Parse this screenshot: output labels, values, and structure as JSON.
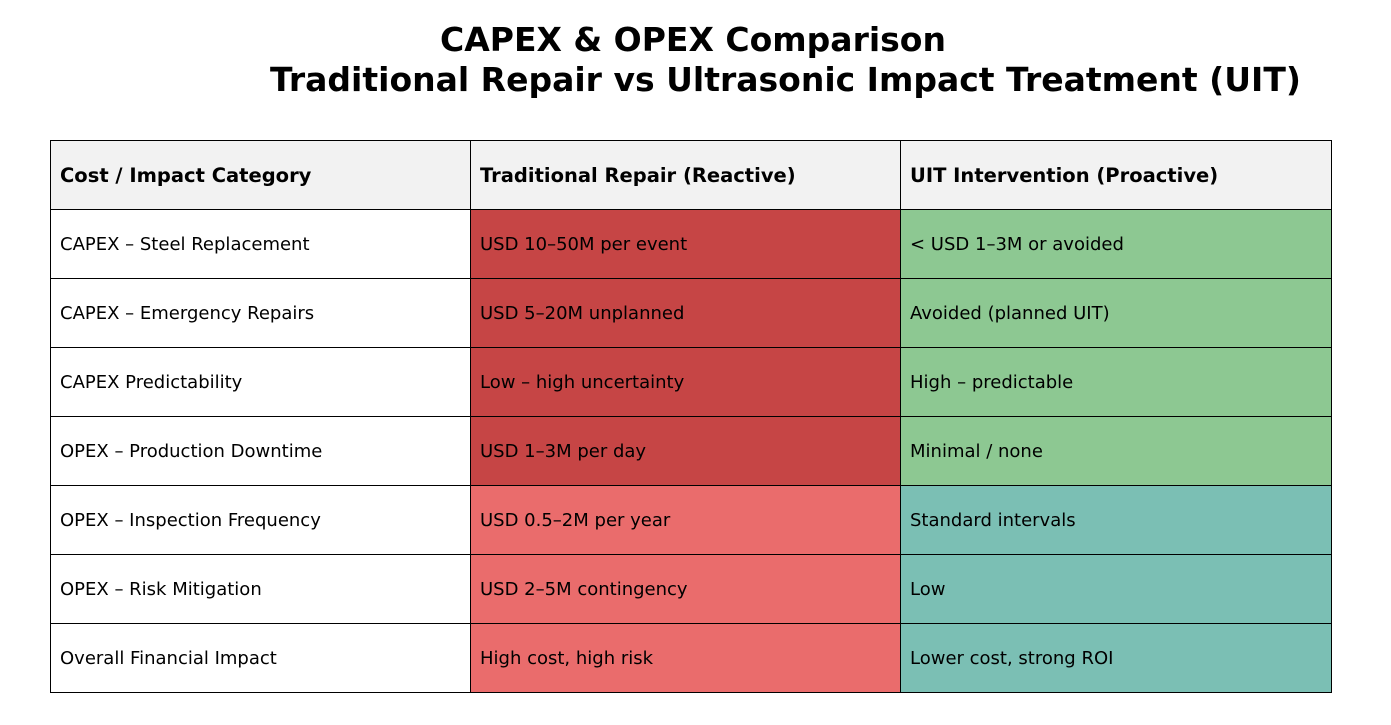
{
  "title": {
    "line1": "CAPEX & OPEX Comparison",
    "line2": "Traditional Repair vs Ultrasonic Impact Treatment (UIT)"
  },
  "colors": {
    "header_bg": "#f2f2f2",
    "category_bg": "#ffffff",
    "traditional_dark_red": "#c64545",
    "traditional_light_red": "#ea6c6c",
    "uit_green": "#8dc892",
    "uit_teal": "#7bbfb4"
  },
  "table": {
    "headers": [
      "Cost / Impact Category",
      "Traditional Repair (Reactive)",
      "UIT Intervention (Proactive)"
    ],
    "rows": [
      {
        "category": "CAPEX – Steel Replacement",
        "traditional": "USD 10–50M per event",
        "uit": "< USD 1–3M or avoided",
        "traditional_color": "#c64545",
        "uit_color": "#8dc892"
      },
      {
        "category": "CAPEX – Emergency Repairs",
        "traditional": "USD 5–20M unplanned",
        "uit": "Avoided (planned UIT)",
        "traditional_color": "#c64545",
        "uit_color": "#8dc892"
      },
      {
        "category": "CAPEX Predictability",
        "traditional": "Low – high uncertainty",
        "uit": "High – predictable",
        "traditional_color": "#c64545",
        "uit_color": "#8dc892"
      },
      {
        "category": "OPEX – Production Downtime",
        "traditional": "USD 1–3M per day",
        "uit": "Minimal / none",
        "traditional_color": "#c64545",
        "uit_color": "#8dc892"
      },
      {
        "category": "OPEX – Inspection Frequency",
        "traditional": "USD 0.5–2M per year",
        "uit": "Standard intervals",
        "traditional_color": "#ea6c6c",
        "uit_color": "#7bbfb4"
      },
      {
        "category": "OPEX – Risk Mitigation",
        "traditional": "USD 2–5M contingency",
        "uit": "Low",
        "traditional_color": "#ea6c6c",
        "uit_color": "#7bbfb4"
      },
      {
        "category": "Overall Financial Impact",
        "traditional": "High cost, high risk",
        "uit": "Lower cost, strong ROI",
        "traditional_color": "#ea6c6c",
        "uit_color": "#7bbfb4"
      }
    ]
  }
}
